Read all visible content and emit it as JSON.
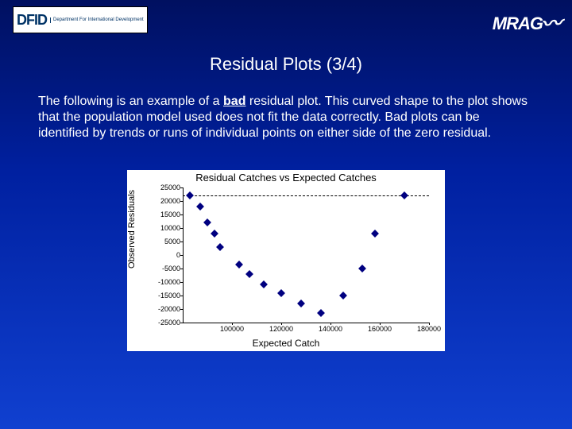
{
  "header": {
    "dfid_main": "DFID",
    "dfid_sub": "Department For\nInternational\nDevelopment",
    "mrag": "MRAG"
  },
  "title": "Residual Plots (3/4)",
  "body": {
    "pre": "The following is an example of a ",
    "bad": "bad",
    "post": " residual plot.  This curved shape to the plot shows that the population model used does not fit the data correctly.  Bad plots can be identified by trends or runs of individual points on either side of the zero residual."
  },
  "chart": {
    "type": "scatter",
    "title": "Residual Catches vs Expected Catches",
    "xlabel": "Expected Catch",
    "ylabel": "Observed Residuals",
    "ylim": [
      -25000,
      25000
    ],
    "xlim": [
      80000,
      180000
    ],
    "yticks": [
      25000,
      20000,
      15000,
      10000,
      5000,
      0,
      -5000,
      -10000,
      -15000,
      -20000,
      -25000
    ],
    "xticks": [
      100000,
      120000,
      140000,
      160000,
      180000
    ],
    "marker_color": "#000080",
    "background_color": "#ffffff",
    "axis_color": "#000000",
    "title_fontsize": 13,
    "label_fontsize": 12,
    "tick_fontsize": 9,
    "marker_size": 7,
    "points": [
      {
        "x": 83000,
        "y": 22000
      },
      {
        "x": 87000,
        "y": 18000
      },
      {
        "x": 90000,
        "y": 12000
      },
      {
        "x": 93000,
        "y": 8000
      },
      {
        "x": 95000,
        "y": 3000
      },
      {
        "x": 103000,
        "y": -3500
      },
      {
        "x": 107000,
        "y": -7000
      },
      {
        "x": 113000,
        "y": -11000
      },
      {
        "x": 120000,
        "y": -14000
      },
      {
        "x": 128000,
        "y": -18000
      },
      {
        "x": 136000,
        "y": -21500
      },
      {
        "x": 145000,
        "y": -15000
      },
      {
        "x": 153000,
        "y": -5000
      },
      {
        "x": 158000,
        "y": 8000
      },
      {
        "x": 170000,
        "y": 22000
      }
    ]
  }
}
